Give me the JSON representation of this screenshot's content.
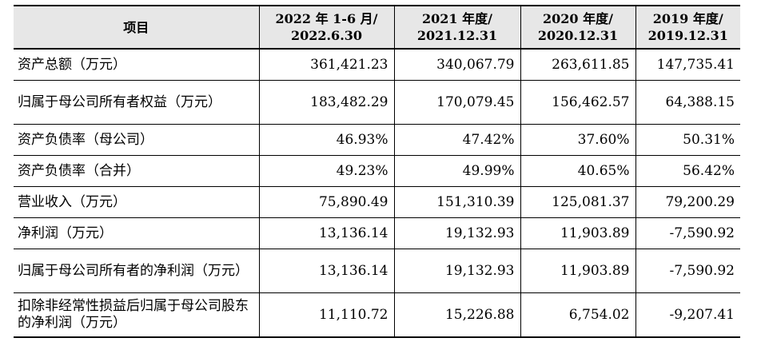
{
  "headers": [
    [
      "项目"
    ],
    [
      "2022 年 1-6 月/",
      "2022.6.30"
    ],
    [
      "2021 年度/",
      "2021.12.31"
    ],
    [
      "2020 年度/",
      "2020.12.31"
    ],
    [
      "2019 年度/",
      "2019.12.31"
    ]
  ],
  "rows": [
    {
      "label": "资产总额（万元）",
      "values": [
        "361,421.23",
        "340,067.79",
        "263,611.85",
        "147,735.41"
      ]
    },
    {
      "label": "归属于母公司所有者权益（万元）",
      "values": [
        "183,482.29",
        "170,079.45",
        "156,462.57",
        "64,388.15"
      ]
    },
    {
      "label": "资产负债率（母公司）",
      "values": [
        "46.93%",
        "47.42%",
        "37.60%",
        "50.31%"
      ]
    },
    {
      "label": "资产负债率（合并）",
      "values": [
        "49.23%",
        "49.99%",
        "40.65%",
        "56.42%"
      ]
    },
    {
      "label": "营业收入（万元）",
      "values": [
        "75,890.49",
        "151,310.39",
        "125,081.37",
        "79,200.29"
      ]
    },
    {
      "label": "净利润（万元）",
      "values": [
        "13,136.14",
        "19,132.93",
        "11,903.89",
        "-7,590.92"
      ]
    },
    {
      "label": "归属于母公司所有者的净利润（万元）",
      "values": [
        "13,136.14",
        "19,132.93",
        "11,903.89",
        "-7,590.92"
      ]
    },
    {
      "label": "扣除非经常性损益后归属于母公司股东的净利润（万元）",
      "values": [
        "11,110.72",
        "15,226.88",
        "6,754.02",
        "-9,207.41"
      ]
    }
  ]
}
